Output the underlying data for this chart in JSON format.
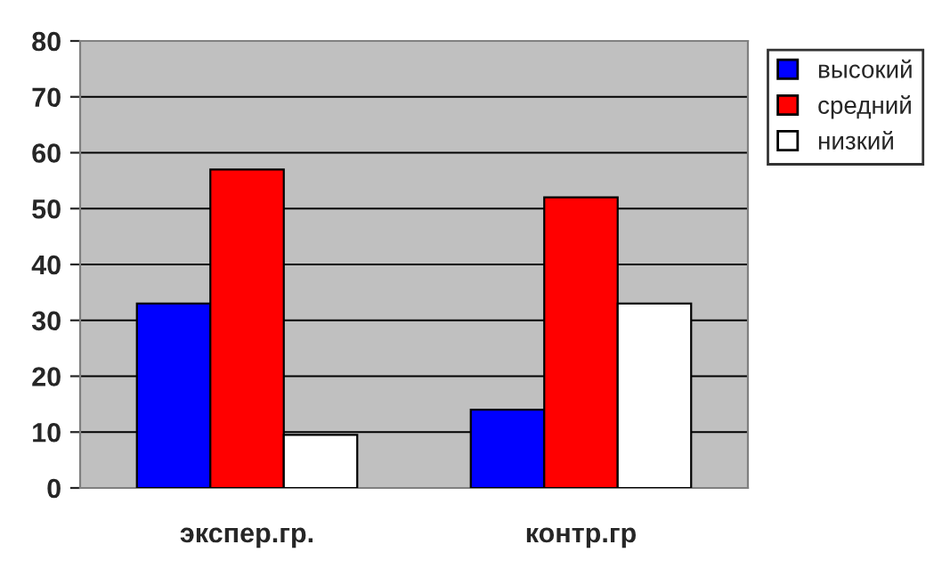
{
  "chart_data": {
    "type": "bar",
    "categories": [
      "экспер.гр.",
      "контр.гр"
    ],
    "series": [
      {
        "name": "высокий",
        "color": "#0000ff",
        "values": [
          33,
          14
        ]
      },
      {
        "name": "средний",
        "color": "#ff0000",
        "values": [
          57,
          52
        ]
      },
      {
        "name": "низкий",
        "color": "#ffffff",
        "values": [
          9.5,
          33
        ]
      }
    ],
    "ylim": [
      0,
      80
    ],
    "yticks": [
      0,
      10,
      20,
      30,
      40,
      50,
      60,
      70,
      80
    ],
    "grid": "y",
    "legend": "right"
  }
}
